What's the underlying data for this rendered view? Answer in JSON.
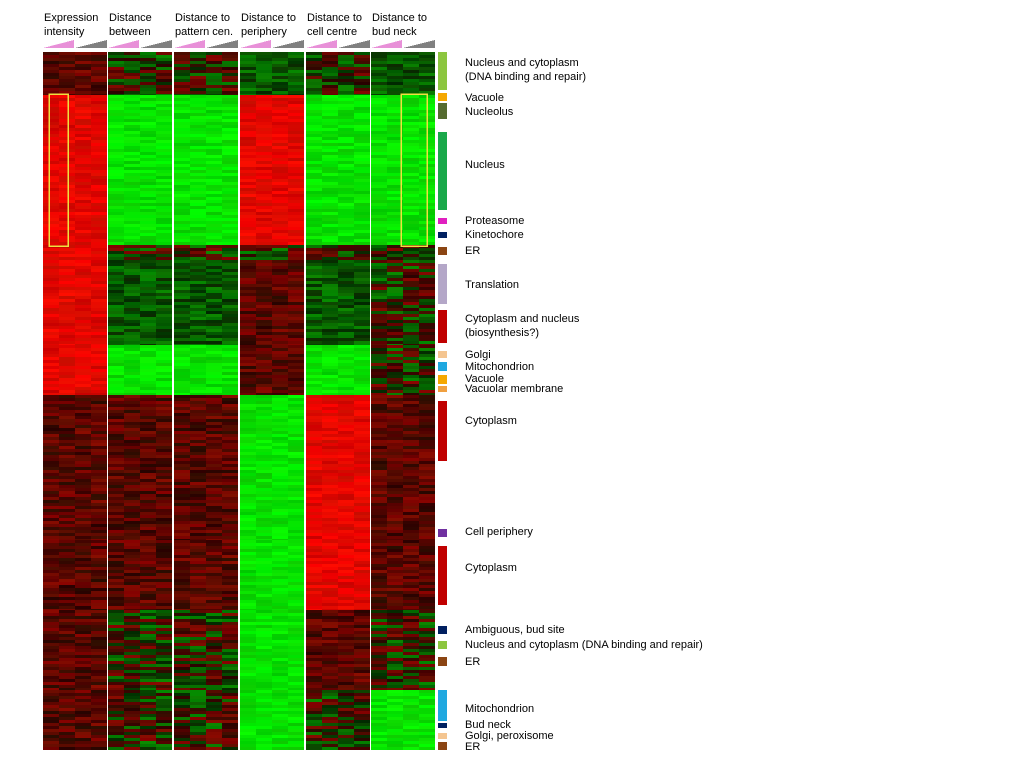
{
  "column_headers": [
    [
      "Expression",
      "intensity"
    ],
    [
      "Distance",
      "between"
    ],
    [
      "Distance to",
      "pattern cen."
    ],
    [
      "Distance to",
      "periphery"
    ],
    [
      "Distance to",
      "cell centre"
    ],
    [
      "Distance to",
      "bud neck"
    ]
  ],
  "annotations": [
    {
      "label": [
        "Nucleus and cytoplasm",
        "(DNA binding and repair)"
      ],
      "color": "#8cc63f"
    },
    {
      "label": [
        "Vacuole"
      ],
      "color": "#f5a800"
    },
    {
      "label": [
        "Nucleolus"
      ],
      "color": "#556b2f"
    },
    {
      "label": [
        "Nucleus"
      ],
      "color": "#1aa84a"
    },
    {
      "label": [
        "Proteasome"
      ],
      "color": "#e020c0"
    },
    {
      "label": [
        "Kinetochore"
      ],
      "color": "#002060"
    },
    {
      "label": [
        "ER"
      ],
      "color": "#8b4513"
    },
    {
      "label": [
        "Translation"
      ],
      "color": "#b4a7c8"
    },
    {
      "label": [
        "Cytoplasm and nucleus",
        "(biosynthesis?)"
      ],
      "color": "#c00000"
    },
    {
      "label": [
        "Golgi"
      ],
      "color": "#f4c590"
    },
    {
      "label": [
        "Mitochondrion"
      ],
      "color": "#1fa8e0"
    },
    {
      "label": [
        "Vacuole"
      ],
      "color": "#f5a800"
    },
    {
      "label": [
        "Vacuolar membrane"
      ],
      "color": "#f0a040"
    },
    {
      "label": [
        "Cytoplasm"
      ],
      "color": "#c00000"
    },
    {
      "label": [
        "Cell periphery"
      ],
      "color": "#7030a0"
    },
    {
      "label": [
        "Cytoplasm"
      ],
      "color": "#c00000"
    },
    {
      "label": [
        "Ambiguous, bud site"
      ],
      "color": "#002060"
    },
    {
      "label": [
        "Nucleus and cytoplasm (DNA binding and repair)"
      ],
      "color": "#8cc63f"
    },
    {
      "label": [
        "ER"
      ],
      "color": "#8b4513"
    },
    {
      "label": [
        "Mitochondrion"
      ],
      "color": "#1fa8e0"
    },
    {
      "label": [
        "Bud neck"
      ],
      "color": "#002060"
    },
    {
      "label": [
        "Golgi, peroxisome"
      ],
      "color": "#f4c590"
    },
    {
      "label": [
        "ER"
      ],
      "color": "#8b4513"
    }
  ]
}
